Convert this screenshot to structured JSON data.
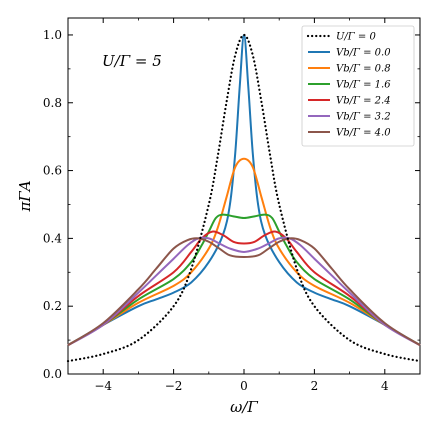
{
  "chart_data": {
    "type": "line",
    "xlabel": "ω/Γ",
    "ylabel": "πΓA",
    "annotation": "U/Γ = 5",
    "xlim": [
      -5,
      5
    ],
    "ylim": [
      0,
      1.05
    ],
    "xticks": [
      -4,
      -2,
      0,
      2,
      4
    ],
    "yticks": [
      0.0,
      0.2,
      0.4,
      0.6,
      0.8,
      1.0
    ],
    "xtick_labels": [
      "−4",
      "−2",
      "0",
      "2",
      "4"
    ],
    "ytick_labels": [
      "0.0",
      "0.2",
      "0.4",
      "0.6",
      "0.8",
      "1.0"
    ],
    "grid": false,
    "legend_position": "top-right",
    "series": [
      {
        "name": "U/Γ = 0",
        "color": "#000000",
        "style": "dotted",
        "x": [
          -5,
          -4,
          -3,
          -2,
          -1.5,
          -1,
          -0.75,
          -0.5,
          -0.25,
          0,
          0.25,
          0.5,
          0.75,
          1,
          1.5,
          2,
          3,
          4,
          5
        ],
        "y": [
          0.038,
          0.059,
          0.1,
          0.2,
          0.31,
          0.5,
          0.64,
          0.8,
          0.94,
          1.0,
          0.94,
          0.8,
          0.64,
          0.5,
          0.31,
          0.2,
          0.1,
          0.059,
          0.038
        ]
      },
      {
        "name": "Vb/Γ = 0.0",
        "color": "#1f77b4",
        "style": "solid",
        "x": [
          -5,
          -4,
          -3,
          -2.5,
          -2,
          -1.5,
          -1,
          -0.6,
          -0.4,
          -0.25,
          -0.12,
          0,
          0.12,
          0.25,
          0.4,
          0.6,
          1,
          1.5,
          2,
          2.5,
          3,
          4,
          5
        ],
        "y": [
          0.085,
          0.145,
          0.2,
          0.22,
          0.24,
          0.27,
          0.33,
          0.41,
          0.5,
          0.65,
          0.85,
          1.0,
          0.85,
          0.65,
          0.5,
          0.41,
          0.33,
          0.27,
          0.24,
          0.22,
          0.2,
          0.145,
          0.085
        ]
      },
      {
        "name": "Vb/Γ = 0.8",
        "color": "#ff7f0e",
        "style": "solid",
        "x": [
          -5,
          -4,
          -3,
          -2,
          -1.5,
          -1,
          -0.75,
          -0.5,
          -0.25,
          0,
          0.25,
          0.5,
          0.75,
          1,
          1.5,
          2,
          3,
          4,
          5
        ],
        "y": [
          0.085,
          0.145,
          0.21,
          0.26,
          0.3,
          0.37,
          0.43,
          0.52,
          0.61,
          0.635,
          0.61,
          0.52,
          0.43,
          0.37,
          0.3,
          0.26,
          0.21,
          0.145,
          0.085
        ]
      },
      {
        "name": "Vb/Γ = 1.6",
        "color": "#2ca02c",
        "style": "solid",
        "x": [
          -5,
          -4,
          -3,
          -2,
          -1.5,
          -1.2,
          -1,
          -0.8,
          -0.6,
          -0.3,
          0,
          0.3,
          0.6,
          0.8,
          1,
          1.2,
          1.5,
          2,
          3,
          4,
          5
        ],
        "y": [
          0.085,
          0.145,
          0.22,
          0.28,
          0.33,
          0.38,
          0.42,
          0.46,
          0.47,
          0.465,
          0.46,
          0.465,
          0.47,
          0.46,
          0.42,
          0.38,
          0.33,
          0.28,
          0.22,
          0.145,
          0.085
        ]
      },
      {
        "name": "Vb/Γ = 2.4",
        "color": "#d62728",
        "style": "solid",
        "x": [
          -5,
          -4,
          -3,
          -2,
          -1.5,
          -1.2,
          -0.9,
          -0.6,
          -0.3,
          0,
          0.3,
          0.6,
          0.9,
          1.2,
          1.5,
          2,
          3,
          4,
          5
        ],
        "y": [
          0.085,
          0.145,
          0.23,
          0.3,
          0.36,
          0.4,
          0.42,
          0.41,
          0.39,
          0.385,
          0.39,
          0.41,
          0.42,
          0.4,
          0.36,
          0.3,
          0.23,
          0.145,
          0.085
        ]
      },
      {
        "name": "Vb/Γ = 3.2",
        "color": "#9467bd",
        "style": "solid",
        "x": [
          -5,
          -4,
          -3,
          -2.5,
          -2,
          -1.6,
          -1.3,
          -1,
          -0.7,
          -0.4,
          0,
          0.4,
          0.7,
          1,
          1.3,
          1.6,
          2,
          2.5,
          3,
          4,
          5
        ],
        "y": [
          0.085,
          0.145,
          0.24,
          0.29,
          0.34,
          0.38,
          0.4,
          0.4,
          0.385,
          0.37,
          0.36,
          0.37,
          0.385,
          0.4,
          0.4,
          0.38,
          0.34,
          0.29,
          0.24,
          0.145,
          0.085
        ]
      },
      {
        "name": "Vb/Γ = 4.0",
        "color": "#8c564b",
        "style": "solid",
        "x": [
          -5,
          -4,
          -3,
          -2.5,
          -2,
          -1.6,
          -1.3,
          -1,
          -0.7,
          -0.4,
          0,
          0.4,
          0.7,
          1,
          1.3,
          1.6,
          2,
          2.5,
          3,
          4,
          5
        ],
        "y": [
          0.085,
          0.15,
          0.25,
          0.31,
          0.37,
          0.395,
          0.4,
          0.39,
          0.37,
          0.35,
          0.345,
          0.35,
          0.37,
          0.39,
          0.4,
          0.395,
          0.37,
          0.31,
          0.25,
          0.15,
          0.085
        ]
      }
    ]
  }
}
